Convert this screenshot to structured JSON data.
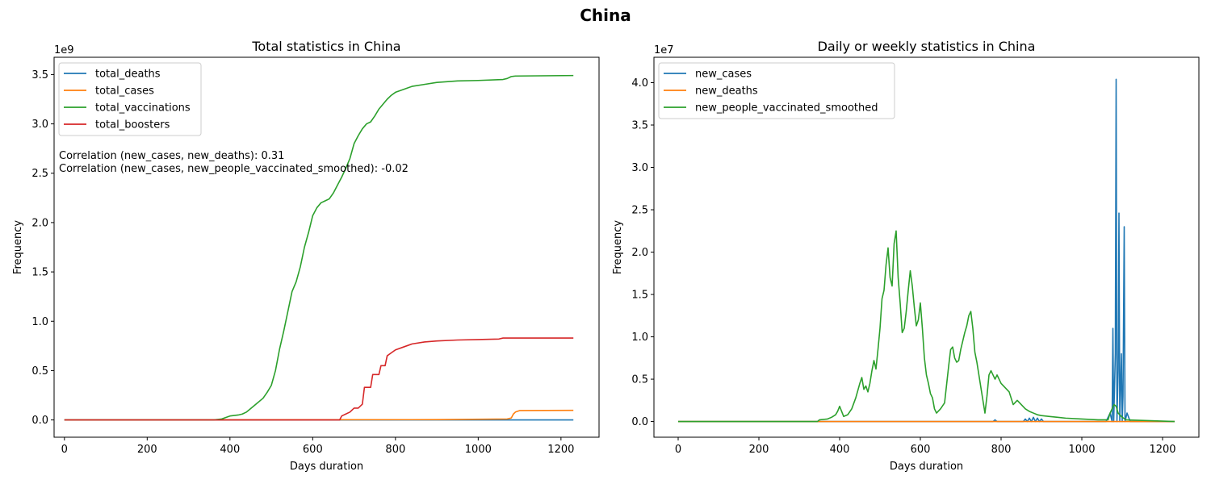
{
  "figure": {
    "title": "China"
  },
  "colors": {
    "blue": "#1f77b4",
    "orange": "#ff7f0e",
    "green": "#2ca02c",
    "red": "#d62728"
  },
  "chart_data": [
    {
      "type": "line",
      "title": "Total statistics in China",
      "xlabel": "Days duration",
      "ylabel": "Frequency",
      "y_multiplier_label": "1e9",
      "xlim": [
        -25,
        1292
      ],
      "ylim": [
        -0.175,
        3.675
      ],
      "xticks": [
        0,
        200,
        400,
        600,
        800,
        1000,
        1200
      ],
      "yticks": [
        0.0,
        0.5,
        1.0,
        1.5,
        2.0,
        2.5,
        3.0,
        3.5
      ],
      "legend": "upper-left",
      "annotations": [
        "Correlation (new_cases, new_deaths): 0.31",
        "Correlation (new_cases, new_people_vaccinated_smoothed): -0.02"
      ],
      "series": [
        {
          "name": "total_deaths",
          "color": "#1f77b4",
          "points": [
            [
              0,
              0
            ],
            [
              1080,
              0.0001
            ],
            [
              1230,
              0.0001
            ]
          ]
        },
        {
          "name": "total_cases",
          "color": "#ff7f0e",
          "points": [
            [
              0,
              0
            ],
            [
              900,
              0.003
            ],
            [
              1070,
              0.01
            ],
            [
              1080,
              0.02
            ],
            [
              1085,
              0.06
            ],
            [
              1090,
              0.08
            ],
            [
              1100,
              0.095
            ],
            [
              1230,
              0.097
            ]
          ]
        },
        {
          "name": "total_vaccinations",
          "color": "#2ca02c",
          "points": [
            [
              0,
              0
            ],
            [
              360,
              0
            ],
            [
              380,
              0.01
            ],
            [
              400,
              0.04
            ],
            [
              420,
              0.05
            ],
            [
              430,
              0.06
            ],
            [
              440,
              0.08
            ],
            [
              460,
              0.15
            ],
            [
              480,
              0.22
            ],
            [
              490,
              0.28
            ],
            [
              500,
              0.35
            ],
            [
              510,
              0.5
            ],
            [
              520,
              0.72
            ],
            [
              530,
              0.9
            ],
            [
              540,
              1.1
            ],
            [
              550,
              1.3
            ],
            [
              560,
              1.4
            ],
            [
              570,
              1.55
            ],
            [
              580,
              1.75
            ],
            [
              590,
              1.9
            ],
            [
              600,
              2.07
            ],
            [
              610,
              2.15
            ],
            [
              620,
              2.2
            ],
            [
              630,
              2.22
            ],
            [
              640,
              2.24
            ],
            [
              650,
              2.3
            ],
            [
              660,
              2.38
            ],
            [
              670,
              2.46
            ],
            [
              680,
              2.55
            ],
            [
              690,
              2.65
            ],
            [
              700,
              2.8
            ],
            [
              710,
              2.88
            ],
            [
              720,
              2.95
            ],
            [
              730,
              3.0
            ],
            [
              740,
              3.02
            ],
            [
              750,
              3.08
            ],
            [
              760,
              3.15
            ],
            [
              770,
              3.2
            ],
            [
              780,
              3.25
            ],
            [
              790,
              3.29
            ],
            [
              800,
              3.32
            ],
            [
              820,
              3.35
            ],
            [
              840,
              3.38
            ],
            [
              870,
              3.4
            ],
            [
              900,
              3.42
            ],
            [
              950,
              3.435
            ],
            [
              1000,
              3.44
            ],
            [
              1060,
              3.45
            ],
            [
              1070,
              3.46
            ],
            [
              1080,
              3.48
            ],
            [
              1090,
              3.485
            ],
            [
              1230,
              3.49
            ]
          ]
        },
        {
          "name": "total_boosters",
          "color": "#d62728",
          "points": [
            [
              0,
              0
            ],
            [
              665,
              0
            ],
            [
              670,
              0.04
            ],
            [
              680,
              0.06
            ],
            [
              690,
              0.08
            ],
            [
              700,
              0.12
            ],
            [
              710,
              0.12
            ],
            [
              720,
              0.16
            ],
            [
              725,
              0.33
            ],
            [
              740,
              0.33
            ],
            [
              745,
              0.46
            ],
            [
              760,
              0.46
            ],
            [
              765,
              0.55
            ],
            [
              775,
              0.55
            ],
            [
              780,
              0.65
            ],
            [
              790,
              0.68
            ],
            [
              800,
              0.71
            ],
            [
              820,
              0.74
            ],
            [
              840,
              0.77
            ],
            [
              870,
              0.79
            ],
            [
              900,
              0.8
            ],
            [
              950,
              0.81
            ],
            [
              1000,
              0.815
            ],
            [
              1050,
              0.82
            ],
            [
              1060,
              0.83
            ],
            [
              1230,
              0.83
            ]
          ]
        }
      ]
    },
    {
      "type": "line",
      "title": "Daily or weekly statistics in China",
      "xlabel": "Days duration",
      "ylabel": "Frequency",
      "y_multiplier_label": "1e7",
      "xlim": [
        -60,
        1290
      ],
      "ylim": [
        -0.185,
        4.3
      ],
      "xticks": [
        0,
        200,
        400,
        600,
        800,
        1000,
        1200
      ],
      "yticks": [
        0.0,
        0.5,
        1.0,
        1.5,
        2.0,
        2.5,
        3.0,
        3.5,
        4.0
      ],
      "legend": "upper-left",
      "series": [
        {
          "name": "new_cases",
          "color": "#1f77b4",
          "points": [
            [
              0,
              0
            ],
            [
              780,
              0
            ],
            [
              785,
              0.02
            ],
            [
              790,
              0
            ],
            [
              855,
              0
            ],
            [
              860,
              0.03
            ],
            [
              865,
              0
            ],
            [
              870,
              0.04
            ],
            [
              875,
              0
            ],
            [
              880,
              0.05
            ],
            [
              885,
              0
            ],
            [
              890,
              0.04
            ],
            [
              895,
              0
            ],
            [
              900,
              0.03
            ],
            [
              905,
              0
            ],
            [
              1060,
              0
            ],
            [
              1070,
              0.1
            ],
            [
              1075,
              0
            ],
            [
              1077,
              1.1
            ],
            [
              1079,
              0
            ],
            [
              1083,
              0.8
            ],
            [
              1085,
              4.04
            ],
            [
              1087,
              0
            ],
            [
              1090,
              0.6
            ],
            [
              1092,
              2.46
            ],
            [
              1094,
              0
            ],
            [
              1098,
              0.8
            ],
            [
              1100,
              0
            ],
            [
              1102,
              0.3
            ],
            [
              1105,
              2.3
            ],
            [
              1107,
              0
            ],
            [
              1112,
              0.1
            ],
            [
              1120,
              0
            ],
            [
              1230,
              0
            ]
          ]
        },
        {
          "name": "new_deaths",
          "color": "#ff7f0e",
          "points": [
            [
              0,
              0
            ],
            [
              1230,
              0
            ]
          ]
        },
        {
          "name": "new_people_vaccinated_smoothed",
          "color": "#2ca02c",
          "points": [
            [
              0,
              0
            ],
            [
              345,
              0
            ],
            [
              350,
              0.02
            ],
            [
              370,
              0.03
            ],
            [
              380,
              0.05
            ],
            [
              390,
              0.08
            ],
            [
              395,
              0.12
            ],
            [
              400,
              0.18
            ],
            [
              405,
              0.12
            ],
            [
              410,
              0.06
            ],
            [
              420,
              0.08
            ],
            [
              430,
              0.15
            ],
            [
              440,
              0.28
            ],
            [
              450,
              0.45
            ],
            [
              455,
              0.52
            ],
            [
              460,
              0.38
            ],
            [
              465,
              0.42
            ],
            [
              470,
              0.35
            ],
            [
              475,
              0.45
            ],
            [
              480,
              0.6
            ],
            [
              485,
              0.72
            ],
            [
              490,
              0.62
            ],
            [
              495,
              0.85
            ],
            [
              500,
              1.1
            ],
            [
              505,
              1.45
            ],
            [
              510,
              1.55
            ],
            [
              515,
              1.85
            ],
            [
              520,
              2.05
            ],
            [
              525,
              1.7
            ],
            [
              530,
              1.6
            ],
            [
              535,
              2.1
            ],
            [
              540,
              2.25
            ],
            [
              545,
              1.7
            ],
            [
              550,
              1.4
            ],
            [
              555,
              1.05
            ],
            [
              560,
              1.1
            ],
            [
              565,
              1.3
            ],
            [
              570,
              1.55
            ],
            [
              575,
              1.78
            ],
            [
              580,
              1.6
            ],
            [
              585,
              1.35
            ],
            [
              590,
              1.13
            ],
            [
              595,
              1.2
            ],
            [
              600,
              1.4
            ],
            [
              605,
              1.1
            ],
            [
              610,
              0.75
            ],
            [
              615,
              0.55
            ],
            [
              620,
              0.45
            ],
            [
              625,
              0.33
            ],
            [
              630,
              0.28
            ],
            [
              635,
              0.15
            ],
            [
              640,
              0.1
            ],
            [
              650,
              0.15
            ],
            [
              660,
              0.22
            ],
            [
              670,
              0.65
            ],
            [
              675,
              0.85
            ],
            [
              680,
              0.88
            ],
            [
              685,
              0.75
            ],
            [
              690,
              0.7
            ],
            [
              695,
              0.72
            ],
            [
              700,
              0.85
            ],
            [
              705,
              0.95
            ],
            [
              710,
              1.05
            ],
            [
              715,
              1.13
            ],
            [
              720,
              1.25
            ],
            [
              725,
              1.3
            ],
            [
              730,
              1.1
            ],
            [
              735,
              0.82
            ],
            [
              740,
              0.7
            ],
            [
              745,
              0.55
            ],
            [
              750,
              0.4
            ],
            [
              755,
              0.25
            ],
            [
              760,
              0.1
            ],
            [
              765,
              0.3
            ],
            [
              770,
              0.55
            ],
            [
              775,
              0.6
            ],
            [
              780,
              0.55
            ],
            [
              785,
              0.5
            ],
            [
              790,
              0.55
            ],
            [
              795,
              0.5
            ],
            [
              800,
              0.45
            ],
            [
              810,
              0.4
            ],
            [
              820,
              0.35
            ],
            [
              830,
              0.2
            ],
            [
              840,
              0.25
            ],
            [
              850,
              0.2
            ],
            [
              860,
              0.15
            ],
            [
              870,
              0.12
            ],
            [
              880,
              0.1
            ],
            [
              890,
              0.08
            ],
            [
              900,
              0.07
            ],
            [
              920,
              0.06
            ],
            [
              940,
              0.05
            ],
            [
              960,
              0.04
            ],
            [
              1000,
              0.03
            ],
            [
              1040,
              0.02
            ],
            [
              1065,
              0.02
            ],
            [
              1070,
              0.1
            ],
            [
              1075,
              0.15
            ],
            [
              1080,
              0.2
            ],
            [
              1085,
              0.18
            ],
            [
              1090,
              0.1
            ],
            [
              1100,
              0.05
            ],
            [
              1110,
              0.02
            ],
            [
              1230,
              0
            ]
          ]
        }
      ]
    }
  ]
}
